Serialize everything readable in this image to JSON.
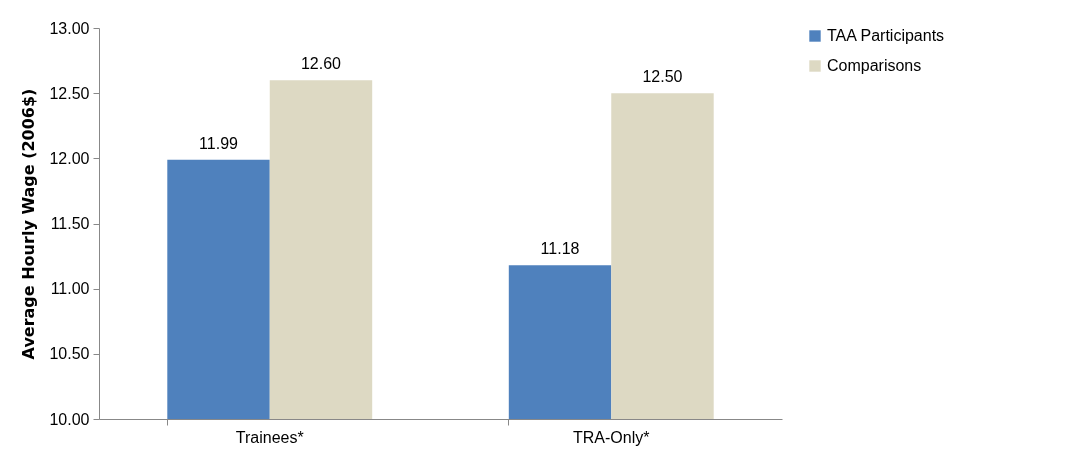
{
  "chart_data": {
    "type": "bar",
    "ylabel": "Average Hourly Wage (2006$)",
    "categories": [
      "Trainees*",
      "TRA-Only*"
    ],
    "series": [
      {
        "name": "TAA Participants",
        "color": "#4f81bd",
        "values": [
          11.99,
          11.18
        ],
        "value_labels": [
          "11.99",
          "11.18"
        ]
      },
      {
        "name": "Comparisons",
        "color": "#ddd9c3",
        "values": [
          12.6,
          12.5
        ],
        "value_labels": [
          "12.60",
          "12.50"
        ]
      }
    ],
    "ylim": [
      10,
      13
    ],
    "yticks": [
      {
        "value": 10,
        "label": "10.00"
      },
      {
        "value": 10.5,
        "label": "10.50"
      },
      {
        "value": 11,
        "label": "11.00"
      },
      {
        "value": 11.5,
        "label": "11.50"
      },
      {
        "value": 12,
        "label": "12.00"
      },
      {
        "value": 12.5,
        "label": "12.50"
      },
      {
        "value": 13,
        "label": "13.00"
      }
    ],
    "grid": false,
    "legend": "right"
  }
}
